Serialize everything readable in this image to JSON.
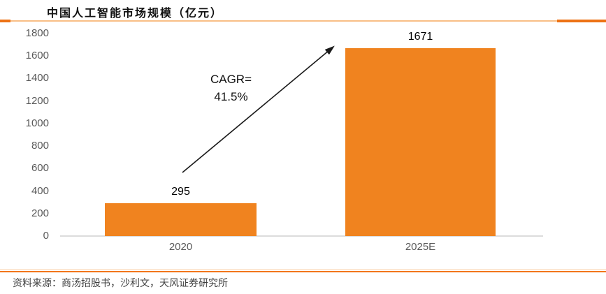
{
  "header": {
    "title": "中国人工智能市场规模（亿元）"
  },
  "chart_data": {
    "type": "bar",
    "title": "中国人工智能市场规模（亿元）",
    "categories": [
      "2020",
      "2025E"
    ],
    "values": [
      295,
      1671
    ],
    "xlabel": "",
    "ylabel": "",
    "ylim": [
      0,
      1800
    ],
    "ytick_step": 200,
    "yticks": [
      0,
      200,
      400,
      600,
      800,
      1000,
      1200,
      1400,
      1600,
      1800
    ],
    "grid": false,
    "legend_position": "none",
    "bar_color": "#F0831F",
    "annotation": {
      "line1": "CAGR=",
      "line2": "41.5%"
    }
  },
  "footer": {
    "source": "资料来源：商汤招股书，沙利文，天风证券研究所"
  },
  "colors": {
    "bar": "#F0831F",
    "accent_dark": "#ED7215",
    "accent_light": "#F8BE86",
    "bottom_rule": "#F2761B",
    "tick_text": "#595959",
    "value_text": "#000000",
    "axis_line": "#DCDCDC"
  }
}
